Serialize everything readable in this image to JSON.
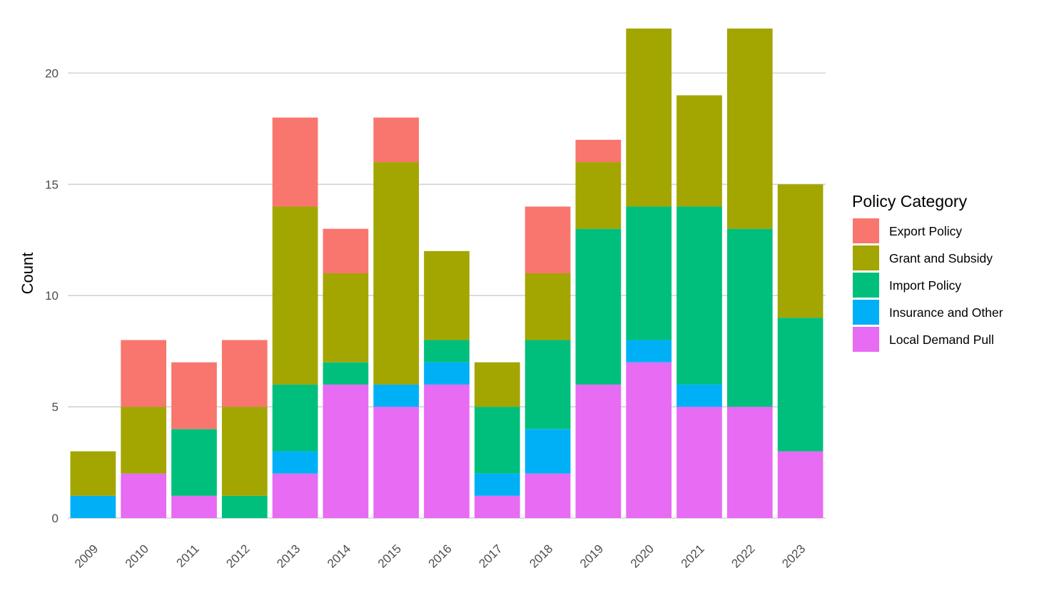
{
  "chart_data": {
    "type": "bar",
    "stacked": true,
    "title": "",
    "xlabel": "",
    "ylabel": "Count",
    "ylim": [
      0,
      22
    ],
    "yticks": [
      0,
      5,
      10,
      15,
      20
    ],
    "grid": true,
    "legend_position": "right",
    "legend_title": "Policy Category",
    "categories": [
      "2009",
      "2010",
      "2011",
      "2012",
      "2013",
      "2014",
      "2015",
      "2016",
      "2017",
      "2018",
      "2019",
      "2020",
      "2021",
      "2022",
      "2023"
    ],
    "series": [
      {
        "name": "Local Demand Pull",
        "color": "#E76BF3",
        "values": [
          0,
          2,
          1,
          0,
          2,
          6,
          5,
          6,
          1,
          2,
          6,
          7,
          5,
          5,
          3
        ]
      },
      {
        "name": "Insurance and Other",
        "color": "#00B0F6",
        "values": [
          1,
          0,
          0,
          0,
          1,
          0,
          1,
          1,
          1,
          2,
          0,
          1,
          1,
          0,
          0
        ]
      },
      {
        "name": "Import Policy",
        "color": "#00BF7D",
        "values": [
          0,
          0,
          3,
          1,
          3,
          1,
          0,
          1,
          3,
          4,
          7,
          6,
          8,
          8,
          6
        ]
      },
      {
        "name": "Grant and Subsidy",
        "color": "#A3A500",
        "values": [
          2,
          3,
          0,
          4,
          8,
          4,
          10,
          4,
          2,
          3,
          3,
          8,
          5,
          9,
          6
        ]
      },
      {
        "name": "Export Policy",
        "color": "#F8766D",
        "values": [
          0,
          3,
          3,
          3,
          4,
          2,
          2,
          0,
          0,
          3,
          1,
          0,
          0,
          0,
          0
        ]
      }
    ],
    "legend_order": [
      "Export Policy",
      "Grant and Subsidy",
      "Import Policy",
      "Insurance and Other",
      "Local Demand Pull"
    ]
  }
}
